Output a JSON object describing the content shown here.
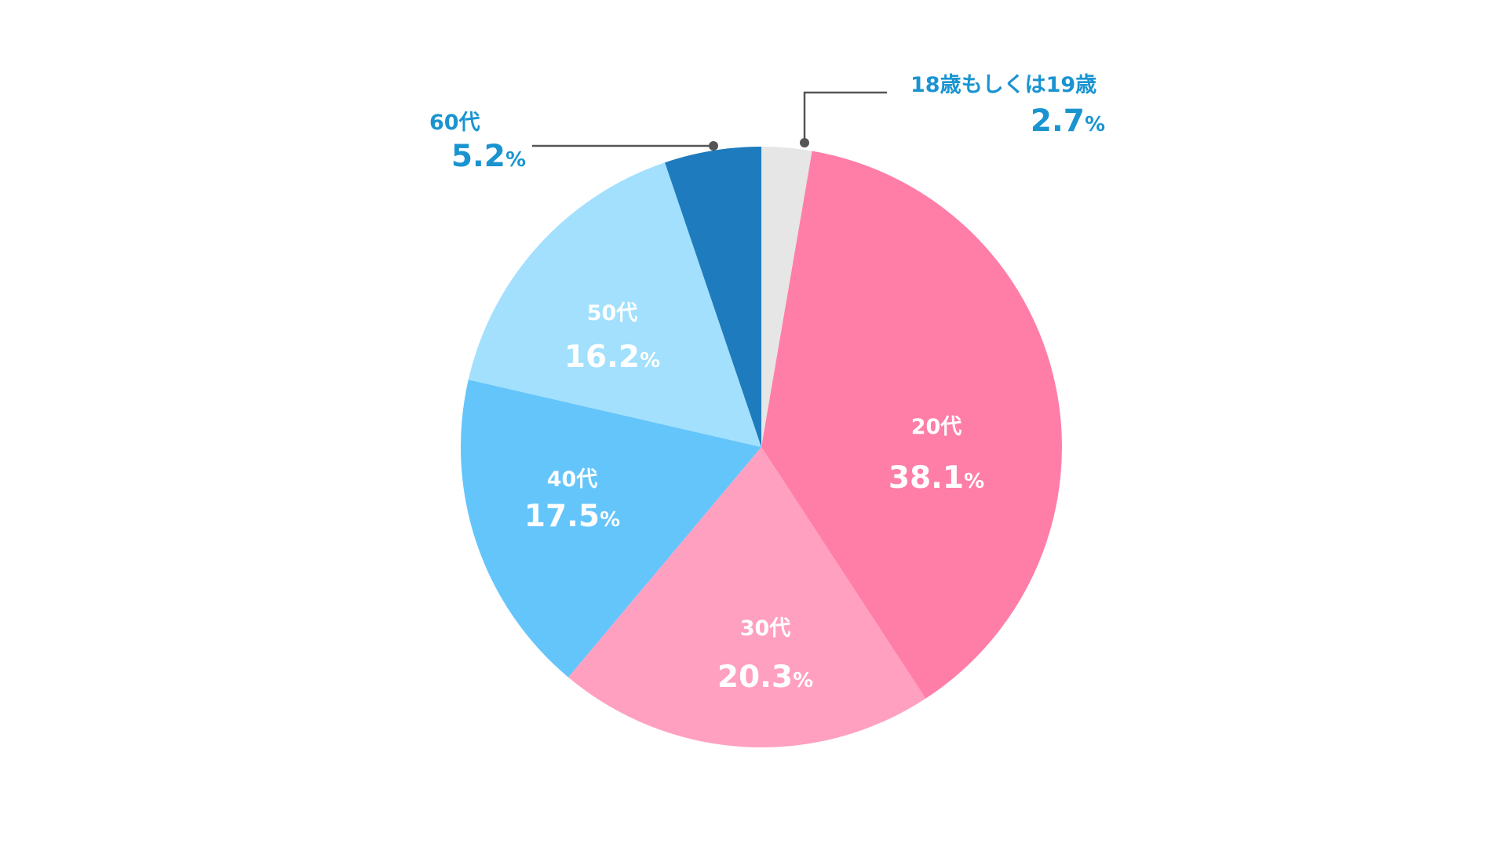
{
  "chart_data": {
    "type": "pie",
    "start_angle_deg": 0,
    "direction": "clockwise",
    "slices": [
      {
        "label": "18歳もしくは19歳",
        "value": 2.7,
        "value_text": "2.7",
        "unit": "%",
        "color": "#e6e6e6",
        "label_color": "#1a94d0",
        "label_placement": "outside"
      },
      {
        "label": "20代",
        "value": 38.1,
        "value_text": "38.1",
        "unit": "%",
        "color": "#ff7ea8",
        "label_color": "#ffffff",
        "label_placement": "inside"
      },
      {
        "label": "30代",
        "value": 20.3,
        "value_text": "20.3",
        "unit": "%",
        "color": "#ffa0c0",
        "label_color": "#ffffff",
        "label_placement": "inside"
      },
      {
        "label": "40代",
        "value": 17.5,
        "value_text": "17.5",
        "unit": "%",
        "color": "#64c5fb",
        "label_color": "#ffffff",
        "label_placement": "inside"
      },
      {
        "label": "50代",
        "value": 16.2,
        "value_text": "16.2",
        "unit": "%",
        "color": "#a2e0fd",
        "label_color": "#ffffff",
        "label_placement": "inside"
      },
      {
        "label": "60代",
        "value": 5.2,
        "value_text": "5.2",
        "unit": "%",
        "color": "#1e7bbd",
        "label_color": "#1a94d0",
        "label_placement": "outside"
      }
    ],
    "leader_line_color": "#555555"
  }
}
